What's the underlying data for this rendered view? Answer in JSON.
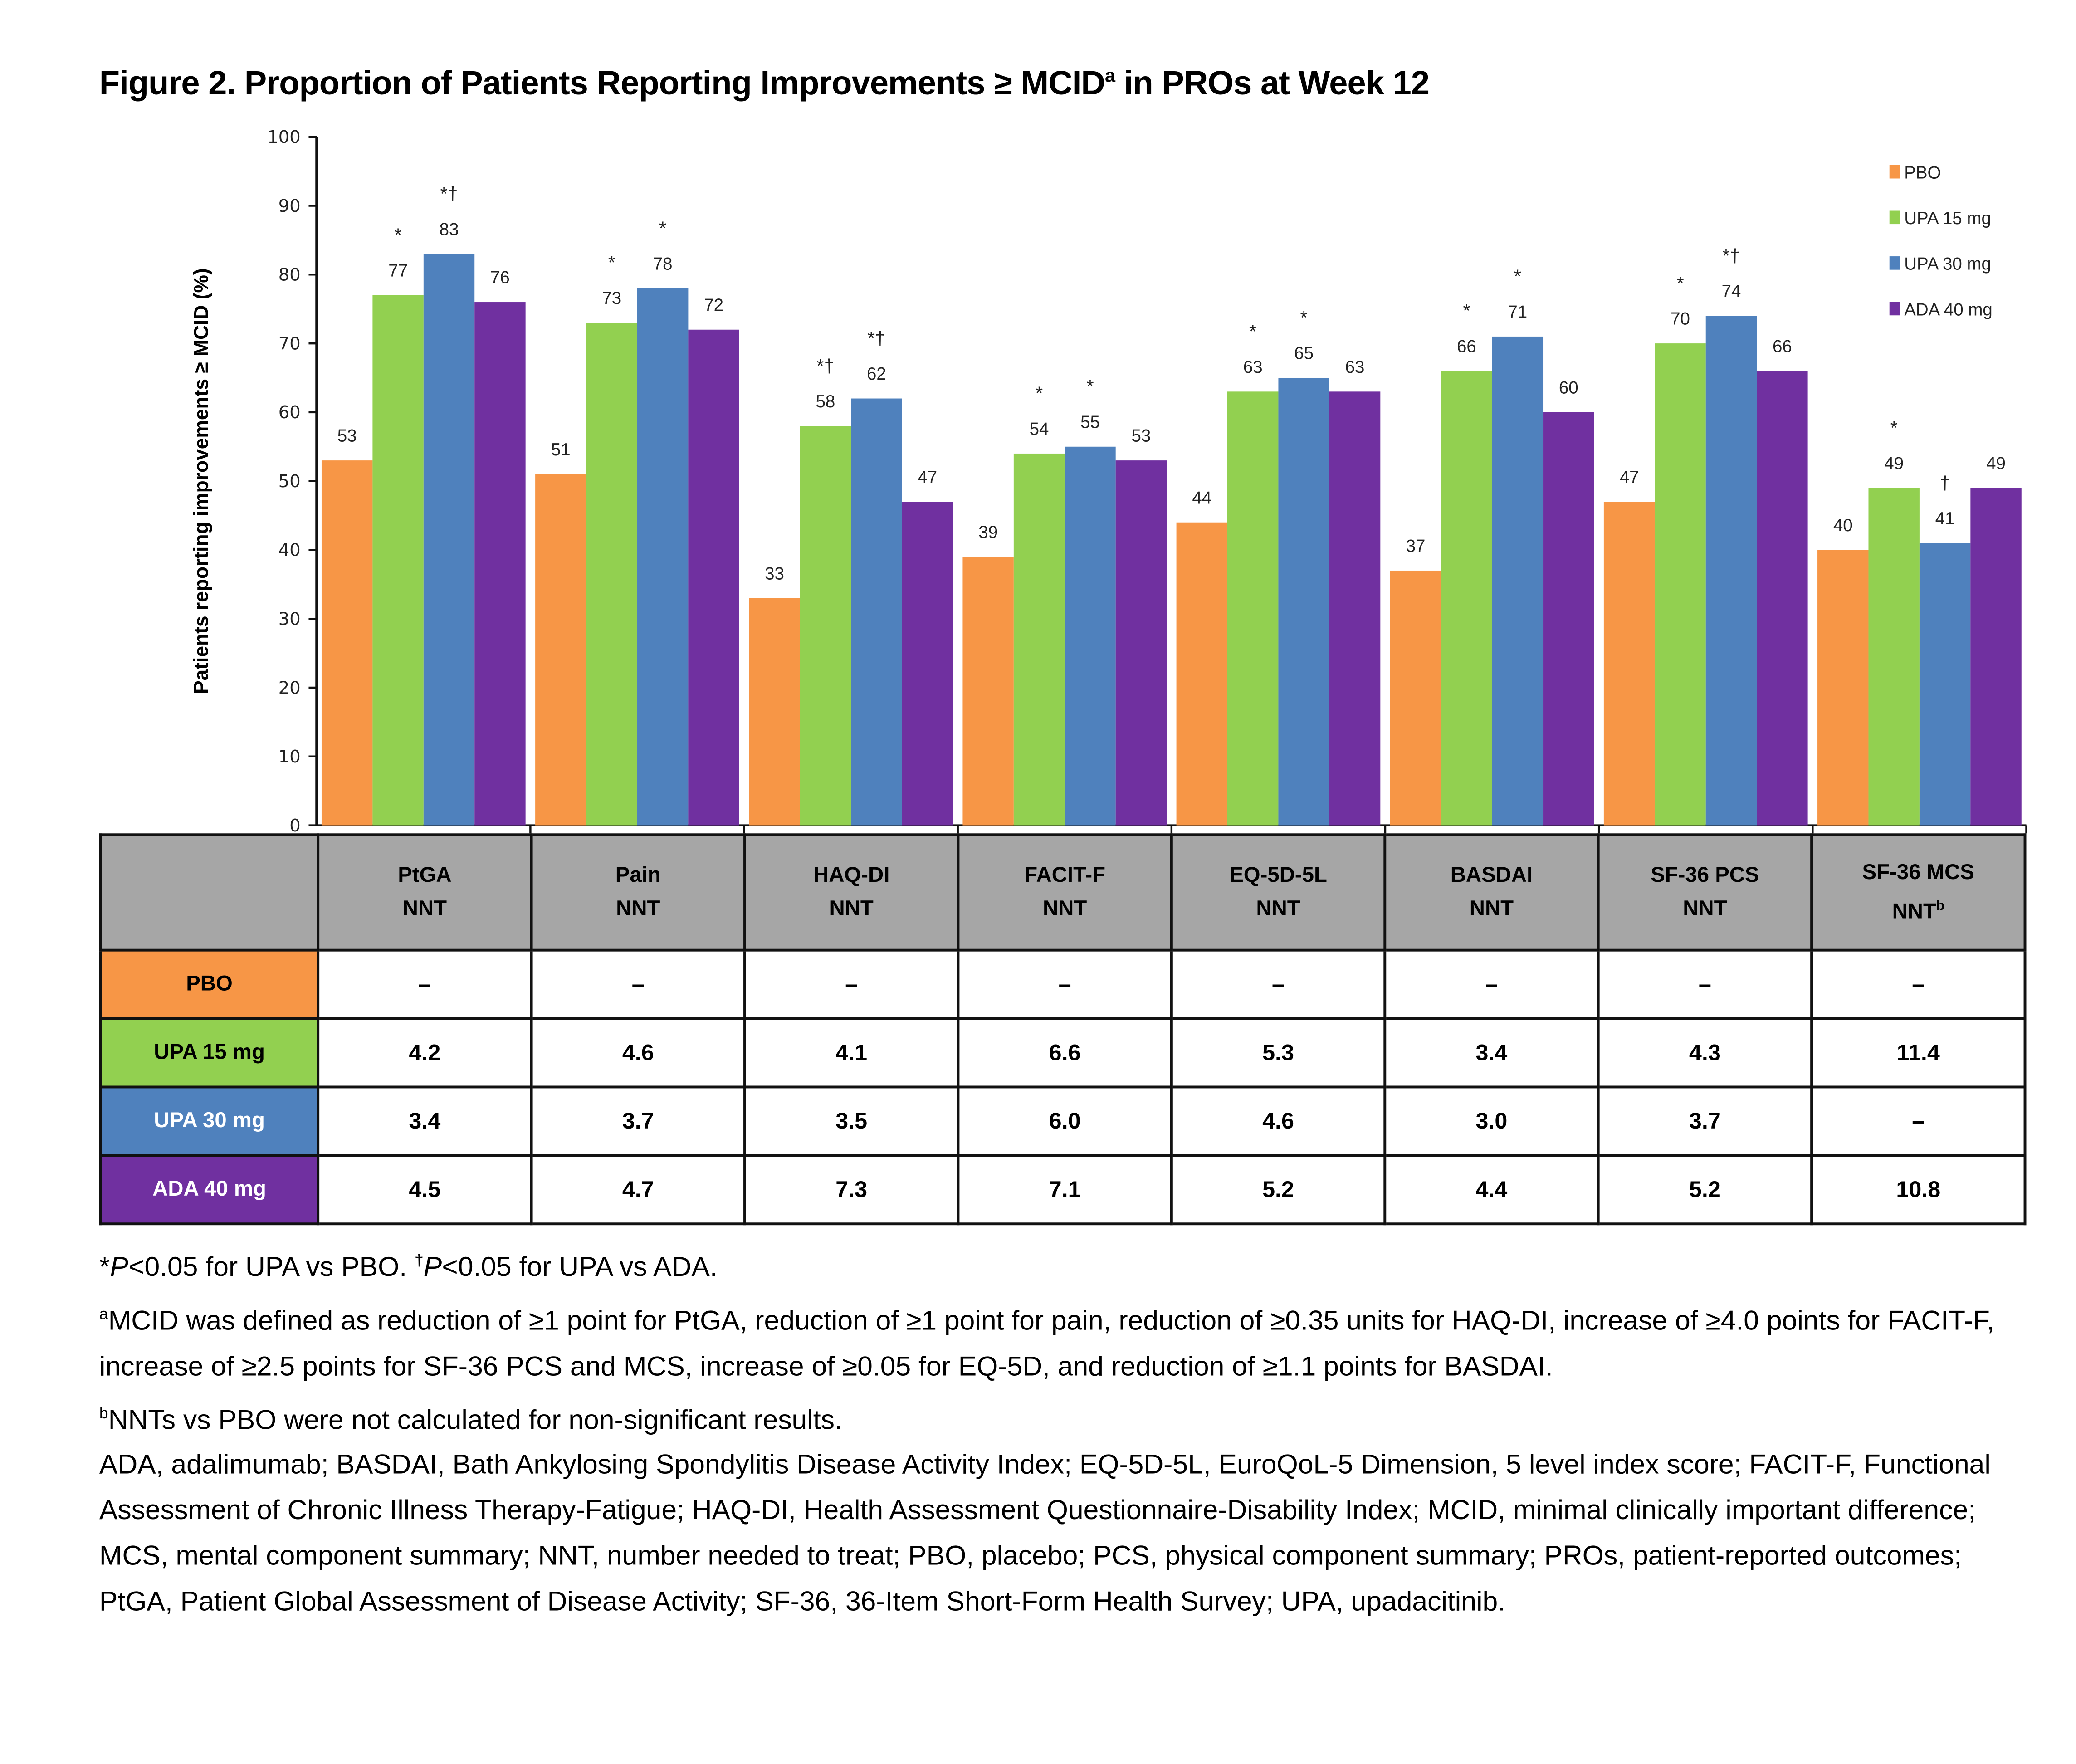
{
  "title": {
    "prefix": "Figure 2. Proportion of Patients Reporting Improvements ≥ MCID",
    "sup": "a",
    "suffix": " in PROs at Week 12"
  },
  "chart_data": {
    "type": "bar",
    "title": "Figure 2. Proportion of Patients Reporting Improvements ≥ MCIDa in PROs at Week 12",
    "xlabel": "",
    "ylabel": "Patients reporting improvements ≥ MCID (%)",
    "ylim": [
      0,
      100
    ],
    "yticks": [
      0,
      10,
      20,
      30,
      40,
      50,
      60,
      70,
      80,
      90,
      100
    ],
    "grid": false,
    "legend_position": "top-right",
    "categories": [
      "PtGA",
      "Pain",
      "HAQ-DI",
      "FACIT-F",
      "EQ-5D-5L",
      "BASDAI",
      "SF-36 PCS",
      "SF-36 MCS"
    ],
    "series": [
      {
        "name": "PBO",
        "color": "#F79646",
        "values": [
          53,
          51,
          33,
          39,
          44,
          37,
          47,
          40
        ],
        "labels": [
          "53",
          "51",
          "33",
          "39",
          "44",
          "37",
          "47",
          "40"
        ],
        "significance": [
          "",
          "",
          "",
          "",
          "",
          "",
          "",
          ""
        ]
      },
      {
        "name": "UPA 15 mg",
        "color": "#92D050",
        "values": [
          77,
          73,
          58,
          54,
          63,
          66,
          70,
          49
        ],
        "labels": [
          "77",
          "73",
          "58",
          "54",
          "63",
          "66",
          "70",
          "49"
        ],
        "significance": [
          "*",
          "*",
          "*†",
          "*",
          "*",
          "*",
          "*",
          "*"
        ]
      },
      {
        "name": "UPA 30 mg",
        "color": "#4F81BD",
        "values": [
          83,
          78,
          62,
          55,
          65,
          71,
          74,
          41
        ],
        "labels": [
          "83",
          "78",
          "62",
          "55",
          "65",
          "71",
          "74",
          "41"
        ],
        "significance": [
          "*†",
          "*",
          "*†",
          "*",
          "*",
          "*",
          "*†",
          "†"
        ]
      },
      {
        "name": "ADA 40 mg",
        "color": "#7030A0",
        "values": [
          76,
          72,
          47,
          53,
          63,
          60,
          66,
          49
        ],
        "labels": [
          "76",
          "72",
          "47",
          "53",
          "63",
          "60",
          "66",
          "49"
        ],
        "significance": [
          "",
          "",
          "",
          "",
          "",
          "",
          "",
          ""
        ]
      }
    ]
  },
  "table": {
    "headers": [
      {
        "line1": "PtGA",
        "line2": "NNT",
        "sup": ""
      },
      {
        "line1": "Pain",
        "line2": "NNT",
        "sup": ""
      },
      {
        "line1": "HAQ-DI",
        "line2": "NNT",
        "sup": ""
      },
      {
        "line1": "FACIT-F",
        "line2": "NNT",
        "sup": ""
      },
      {
        "line1": "EQ-5D-5L",
        "line2": "NNT",
        "sup": ""
      },
      {
        "line1": "BASDAI",
        "line2": "NNT",
        "sup": ""
      },
      {
        "line1": "SF-36 PCS",
        "line2": "NNT",
        "sup": ""
      },
      {
        "line1": "SF-36 MCS",
        "line2": "NNT",
        "sup": "b"
      }
    ],
    "rows": [
      {
        "label": "PBO",
        "bg": "#F79646",
        "fg": "#000000",
        "cells": [
          "–",
          "–",
          "–",
          "–",
          "–",
          "–",
          "–",
          "–"
        ]
      },
      {
        "label": "UPA 15 mg",
        "bg": "#92D050",
        "fg": "#000000",
        "cells": [
          "4.2",
          "4.6",
          "4.1",
          "6.6",
          "5.3",
          "3.4",
          "4.3",
          "11.4"
        ]
      },
      {
        "label": "UPA 30 mg",
        "bg": "#4F81BD",
        "fg": "#ffffff",
        "cells": [
          "3.4",
          "3.7",
          "3.5",
          "6.0",
          "4.6",
          "3.0",
          "3.7",
          "–"
        ]
      },
      {
        "label": "ADA 40 mg",
        "bg": "#7030A0",
        "fg": "#ffffff",
        "cells": [
          "4.5",
          "4.7",
          "7.3",
          "7.1",
          "5.2",
          "4.4",
          "5.2",
          "10.8"
        ]
      }
    ]
  },
  "notes": {
    "line1": {
      "star": "*",
      "p1": "P",
      "t1": "<0.05 for UPA vs PBO. ",
      "dagger": "†",
      "p2": "P",
      "t2": "<0.05 for UPA vs ADA."
    },
    "mcid": {
      "sup": "a",
      "text": "MCID was defined as reduction of ≥1 point for PtGA, reduction of ≥1 point for pain, reduction of ≥0.35 units for HAQ-DI, increase of ≥4.0 points for FACIT-F, increase of ≥2.5 points for SF-36 PCS and MCS, increase of ≥0.05 for EQ-5D, and reduction of ≥1.1 points for BASDAI."
    },
    "nnt": {
      "sup": "b",
      "text": "NNTs vs PBO were not calculated for non-significant results."
    },
    "abbrev": "ADA, adalimumab; BASDAI, Bath Ankylosing Spondylitis Disease Activity Index; EQ-5D-5L, EuroQoL-5 Dimension, 5 level index score; FACIT-F, Functional Assessment of Chronic Illness Therapy-Fatigue; HAQ-DI, Health Assessment Questionnaire-Disability Index; MCID, minimal clinically important difference; MCS, mental component summary; NNT, number needed to treat; PBO, placebo; PCS, physical component summary; PROs, patient-reported outcomes; PtGA, Patient Global Assessment of Disease Activity; SF-36, 36-Item Short-Form Health Survey; UPA, upadacitinib."
  }
}
